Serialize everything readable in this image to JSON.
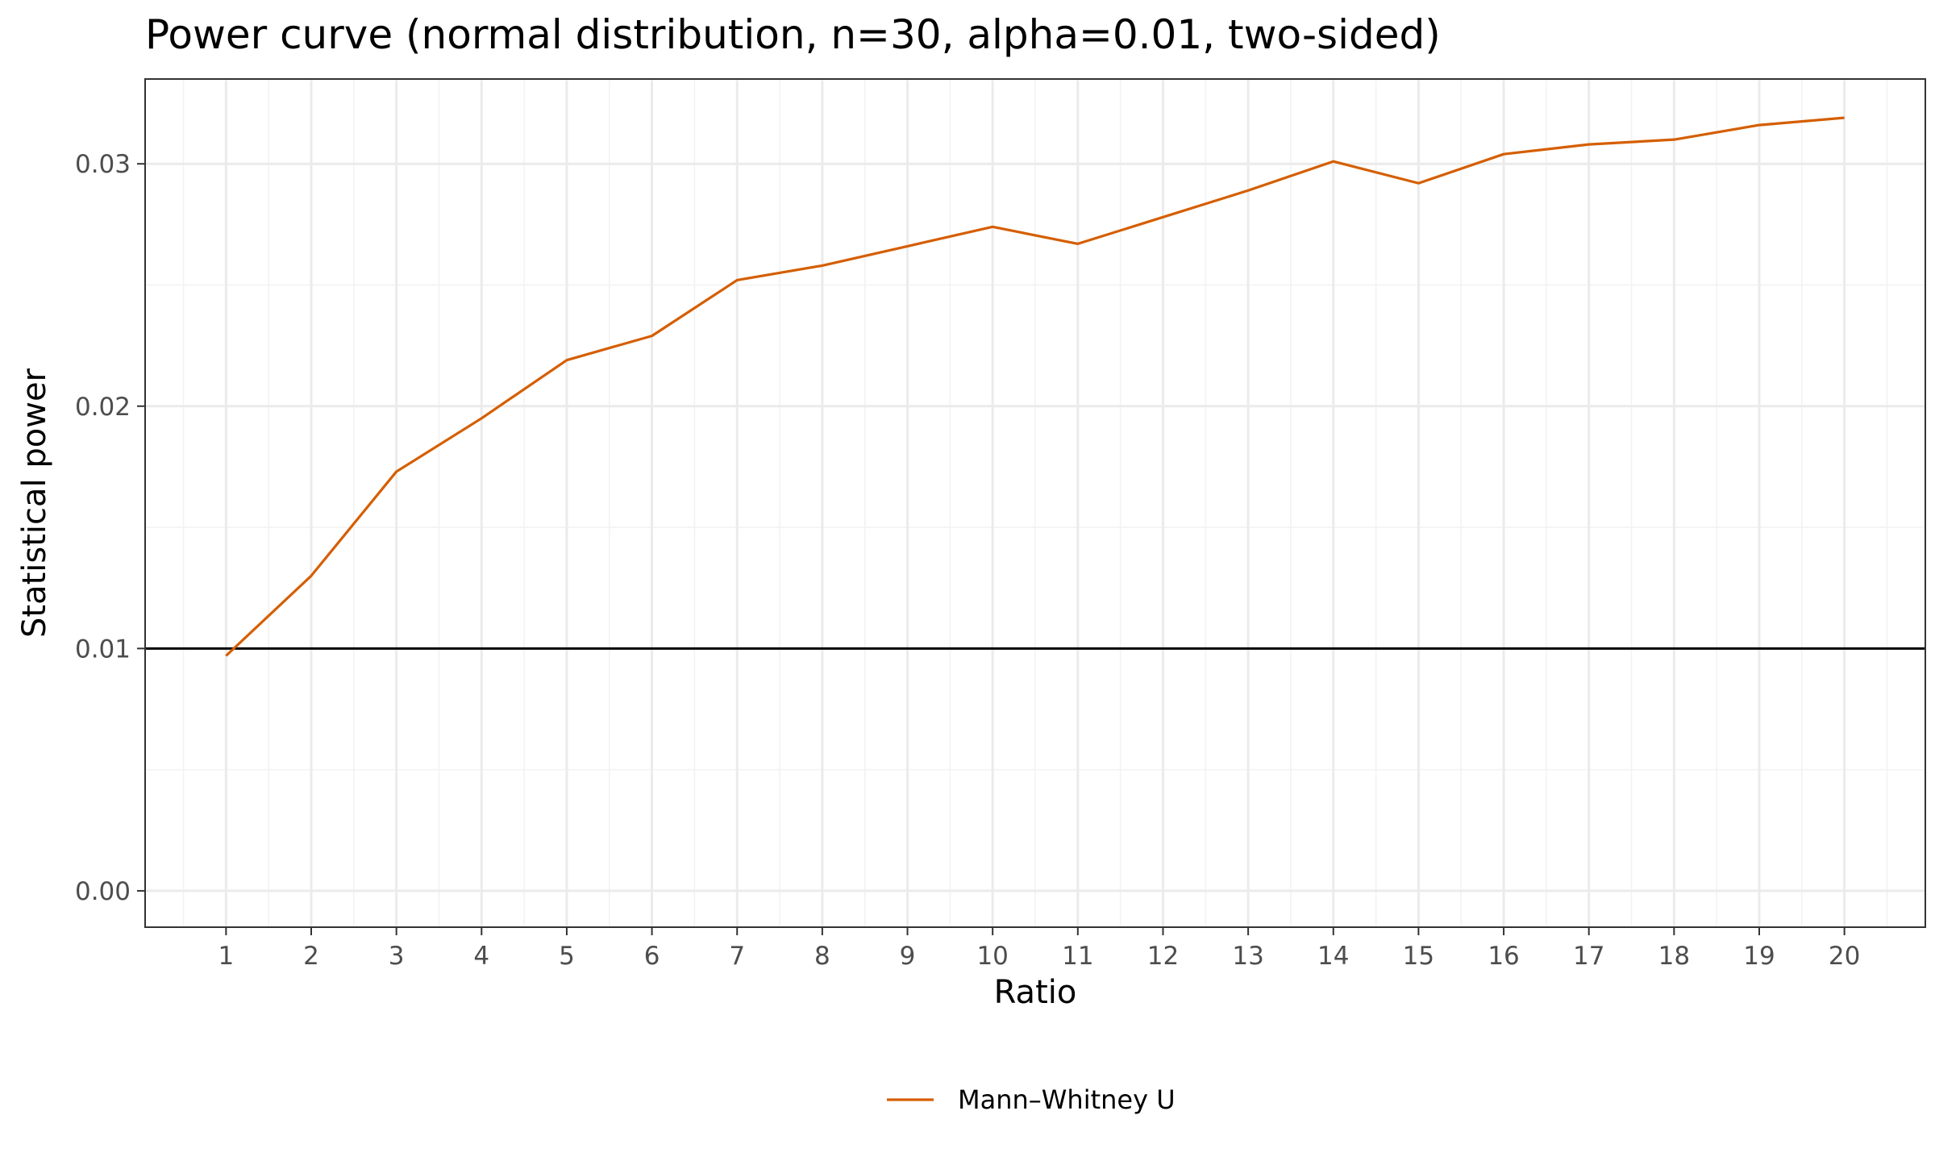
{
  "chart_data": {
    "type": "line",
    "title": "Power curve (normal distribution, n=30, alpha=0.01, two-sided)",
    "xlabel": "Ratio",
    "ylabel": "Statistical power",
    "x": [
      1,
      2,
      3,
      4,
      5,
      6,
      7,
      8,
      9,
      10,
      11,
      12,
      13,
      14,
      15,
      16,
      17,
      18,
      19,
      20
    ],
    "xlim": [
      0.05,
      20.95
    ],
    "ylim": [
      -0.0015,
      0.0335
    ],
    "x_ticks": [
      1,
      2,
      3,
      4,
      5,
      6,
      7,
      8,
      9,
      10,
      11,
      12,
      13,
      14,
      15,
      16,
      17,
      18,
      19,
      20
    ],
    "x_tick_labels": [
      "1",
      "2",
      "3",
      "4",
      "5",
      "6",
      "7",
      "8",
      "9",
      "10",
      "11",
      "12",
      "13",
      "14",
      "15",
      "16",
      "17",
      "18",
      "19",
      "20"
    ],
    "y_ticks": [
      0,
      0.01,
      0.02,
      0.03
    ],
    "y_tick_labels": [
      "0.00",
      "0.01",
      "0.02",
      "0.03"
    ],
    "grid": true,
    "legend_position": "bottom",
    "series": [
      {
        "name": "Mann–Whitney U",
        "color": "#d55e00",
        "values": [
          0.0097,
          0.013,
          0.0173,
          0.0195,
          0.0219,
          0.0229,
          0.0252,
          0.0258,
          0.0266,
          0.0274,
          0.0267,
          0.0278,
          0.0289,
          0.0301,
          0.0292,
          0.0304,
          0.0308,
          0.031,
          0.0316,
          0.0319
        ]
      }
    ],
    "reference_line": {
      "y": 0.01,
      "color": "#000000"
    }
  }
}
